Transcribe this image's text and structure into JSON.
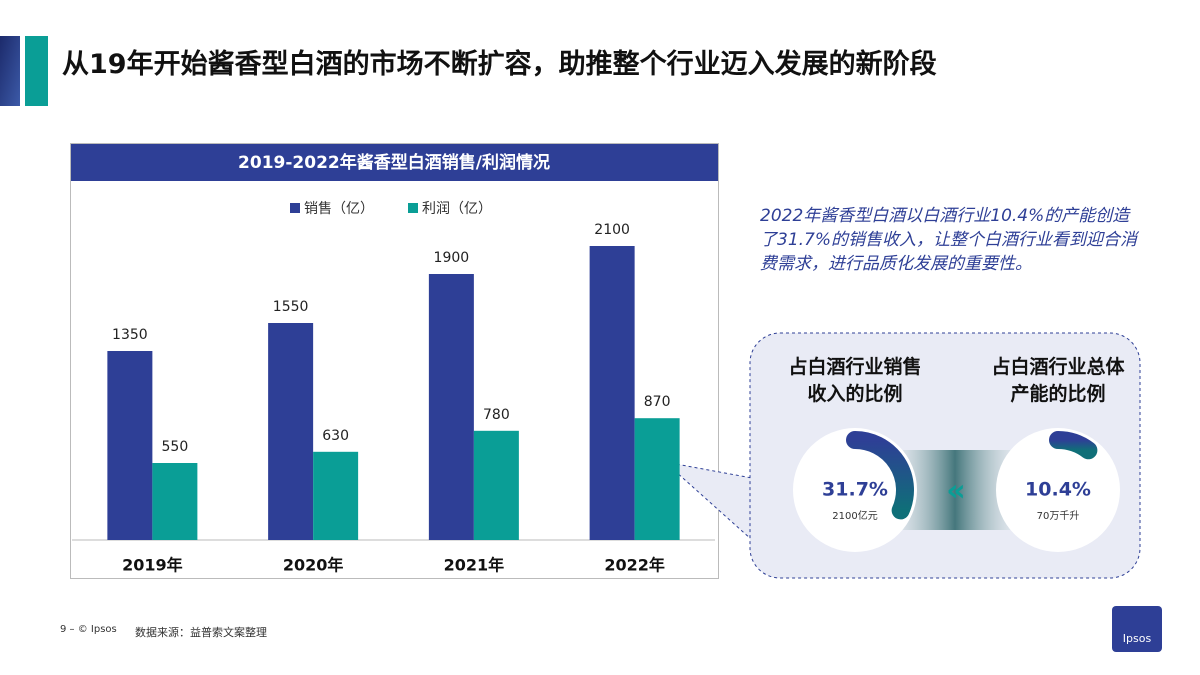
{
  "title": "从19年开始酱香型白酒的市场不断扩容，助推整个行业迈入发展的新阶段",
  "chart_data": {
    "type": "bar",
    "title": "2019-2022年酱香型白酒销售/利润情况",
    "categories": [
      "2019年",
      "2020年",
      "2021年",
      "2022年"
    ],
    "series": [
      {
        "name": "销售（亿）",
        "color": "#2e3f96",
        "values": [
          1350,
          1550,
          1900,
          2100
        ]
      },
      {
        "name": "利润（亿）",
        "color": "#0a9e96",
        "values": [
          550,
          630,
          780,
          870
        ]
      }
    ],
    "ylim": [
      0,
      2500
    ]
  },
  "note": "2022年酱香型白酒以白酒行业10.4%的产能创造了31.7%的销售收入，让整个白酒行业看到迎合消费需求，进行品质化发展的重要性。",
  "gauges": [
    {
      "label": "占白酒行业销售收入的比例",
      "value": 31.7,
      "value_label": "31.7%",
      "sub": "2100亿元"
    },
    {
      "label": "占白酒行业总体产能的比例",
      "value": 10.4,
      "value_label": "10.4%",
      "sub": "70万千升"
    }
  ],
  "footer": {
    "page": "9 – © Ipsos",
    "source": "数据来源：益普索文案整理",
    "logo": "Ipsos"
  }
}
